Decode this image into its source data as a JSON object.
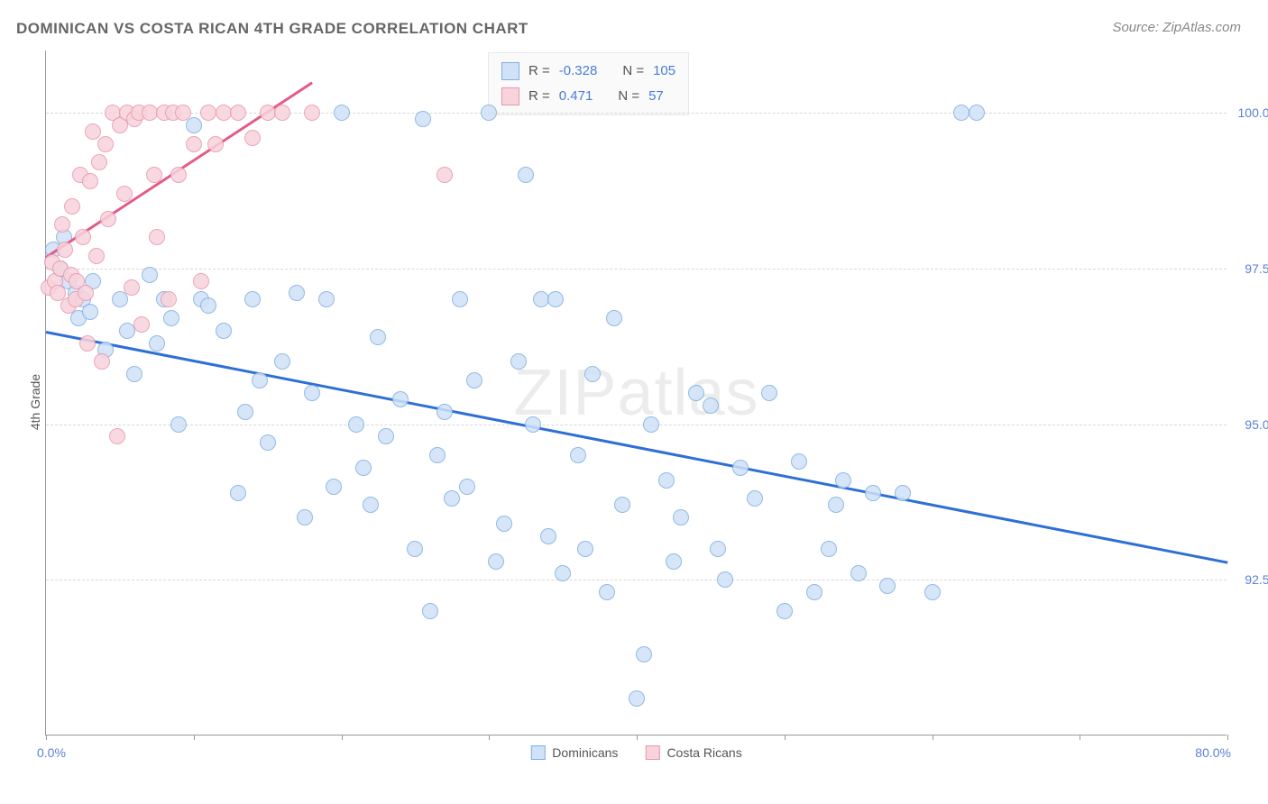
{
  "title": "DOMINICAN VS COSTA RICAN 4TH GRADE CORRELATION CHART",
  "source": "Source: ZipAtlas.com",
  "watermark_a": "ZIP",
  "watermark_b": "atlas",
  "chart": {
    "type": "scatter",
    "y_axis_title": "4th Grade",
    "background_color": "#ffffff",
    "grid_color": "#d8d8d8",
    "axis_color": "#999999",
    "xlim": [
      0,
      80
    ],
    "ylim": [
      90,
      101
    ],
    "x_tick_positions": [
      0,
      10,
      20,
      30,
      40,
      50,
      60,
      70,
      80
    ],
    "x_labels": {
      "min": "0.0%",
      "max": "80.0%"
    },
    "y_ticks": [
      {
        "v": 92.5,
        "label": "92.5%"
      },
      {
        "v": 95.0,
        "label": "95.0%"
      },
      {
        "v": 97.5,
        "label": "97.5%"
      },
      {
        "v": 100.0,
        "label": "100.0%"
      }
    ],
    "marker_radius": 9,
    "series": [
      {
        "name": "Dominicans",
        "fill": "#cfe2f7",
        "stroke": "#7eaee0",
        "trend_color": "#2e6fd6",
        "trend": {
          "x1": 0,
          "y1": 96.5,
          "x2": 80,
          "y2": 92.8
        },
        "r": "-0.328",
        "n": "105",
        "points": [
          [
            0.5,
            97.8
          ],
          [
            1.0,
            97.5
          ],
          [
            1.2,
            98.0
          ],
          [
            1.5,
            97.3
          ],
          [
            2.0,
            97.1
          ],
          [
            2.2,
            96.7
          ],
          [
            2.5,
            97.0
          ],
          [
            3.0,
            96.8
          ],
          [
            3.2,
            97.3
          ],
          [
            4.0,
            96.2
          ],
          [
            5.0,
            97.0
          ],
          [
            5.5,
            96.5
          ],
          [
            6.0,
            95.8
          ],
          [
            7.0,
            97.4
          ],
          [
            7.5,
            96.3
          ],
          [
            8.0,
            97.0
          ],
          [
            8.5,
            96.7
          ],
          [
            9.0,
            95.0
          ],
          [
            10.0,
            99.8
          ],
          [
            10.5,
            97.0
          ],
          [
            11.0,
            96.9
          ],
          [
            12.0,
            96.5
          ],
          [
            13.0,
            93.9
          ],
          [
            13.5,
            95.2
          ],
          [
            14.0,
            97.0
          ],
          [
            14.5,
            95.7
          ],
          [
            15.0,
            94.7
          ],
          [
            16.0,
            96.0
          ],
          [
            17.0,
            97.1
          ],
          [
            17.5,
            93.5
          ],
          [
            18.0,
            95.5
          ],
          [
            19.0,
            97.0
          ],
          [
            19.5,
            94.0
          ],
          [
            20.0,
            100.0
          ],
          [
            21.0,
            95.0
          ],
          [
            21.5,
            94.3
          ],
          [
            22.0,
            93.7
          ],
          [
            22.5,
            96.4
          ],
          [
            23.0,
            94.8
          ],
          [
            24.0,
            95.4
          ],
          [
            25.0,
            93.0
          ],
          [
            25.5,
            99.9
          ],
          [
            26.0,
            92.0
          ],
          [
            26.5,
            94.5
          ],
          [
            27.0,
            95.2
          ],
          [
            27.5,
            93.8
          ],
          [
            28.0,
            97.0
          ],
          [
            28.5,
            94.0
          ],
          [
            29.0,
            95.7
          ],
          [
            30.0,
            100.0
          ],
          [
            30.5,
            92.8
          ],
          [
            31.0,
            93.4
          ],
          [
            32.0,
            96.0
          ],
          [
            32.5,
            99.0
          ],
          [
            33.0,
            95.0
          ],
          [
            33.5,
            97.0
          ],
          [
            34.0,
            93.2
          ],
          [
            34.5,
            97.0
          ],
          [
            35.0,
            92.6
          ],
          [
            36.0,
            94.5
          ],
          [
            36.5,
            93.0
          ],
          [
            37.0,
            95.8
          ],
          [
            38.0,
            92.3
          ],
          [
            38.5,
            96.7
          ],
          [
            39.0,
            93.7
          ],
          [
            40.0,
            90.6
          ],
          [
            40.5,
            91.3
          ],
          [
            41.0,
            95.0
          ],
          [
            42.0,
            94.1
          ],
          [
            42.5,
            92.8
          ],
          [
            43.0,
            93.5
          ],
          [
            44.0,
            95.5
          ],
          [
            45.0,
            95.3
          ],
          [
            45.5,
            93.0
          ],
          [
            46.0,
            92.5
          ],
          [
            47.0,
            94.3
          ],
          [
            48.0,
            93.8
          ],
          [
            49.0,
            95.5
          ],
          [
            50.0,
            92.0
          ],
          [
            51.0,
            94.4
          ],
          [
            52.0,
            92.3
          ],
          [
            53.0,
            93.0
          ],
          [
            53.5,
            93.7
          ],
          [
            54.0,
            94.1
          ],
          [
            55.0,
            92.6
          ],
          [
            56.0,
            93.9
          ],
          [
            57.0,
            92.4
          ],
          [
            58.0,
            93.9
          ],
          [
            60.0,
            92.3
          ],
          [
            62.0,
            100.0
          ],
          [
            63.0,
            100.0
          ]
        ]
      },
      {
        "name": "Costa Ricans",
        "fill": "#f9d3dc",
        "stroke": "#e796ab",
        "trend_color": "#e45a87",
        "trend": {
          "x1": 0,
          "y1": 97.7,
          "x2": 18,
          "y2": 100.5
        },
        "r": "0.471",
        "n": "57",
        "points": [
          [
            0.2,
            97.2
          ],
          [
            0.4,
            97.6
          ],
          [
            0.6,
            97.3
          ],
          [
            0.8,
            97.1
          ],
          [
            1.0,
            97.5
          ],
          [
            1.1,
            98.2
          ],
          [
            1.3,
            97.8
          ],
          [
            1.5,
            96.9
          ],
          [
            1.7,
            97.4
          ],
          [
            1.8,
            98.5
          ],
          [
            2.0,
            97.0
          ],
          [
            2.1,
            97.3
          ],
          [
            2.3,
            99.0
          ],
          [
            2.5,
            98.0
          ],
          [
            2.7,
            97.1
          ],
          [
            2.8,
            96.3
          ],
          [
            3.0,
            98.9
          ],
          [
            3.2,
            99.7
          ],
          [
            3.4,
            97.7
          ],
          [
            3.6,
            99.2
          ],
          [
            3.8,
            96.0
          ],
          [
            4.0,
            99.5
          ],
          [
            4.2,
            98.3
          ],
          [
            4.5,
            100.0
          ],
          [
            4.8,
            94.8
          ],
          [
            5.0,
            99.8
          ],
          [
            5.3,
            98.7
          ],
          [
            5.5,
            100.0
          ],
          [
            5.8,
            97.2
          ],
          [
            6.0,
            99.9
          ],
          [
            6.3,
            100.0
          ],
          [
            6.5,
            96.6
          ],
          [
            7.0,
            100.0
          ],
          [
            7.3,
            99.0
          ],
          [
            7.5,
            98.0
          ],
          [
            8.0,
            100.0
          ],
          [
            8.3,
            97.0
          ],
          [
            8.6,
            100.0
          ],
          [
            9.0,
            99.0
          ],
          [
            9.3,
            100.0
          ],
          [
            10.0,
            99.5
          ],
          [
            10.5,
            97.3
          ],
          [
            11.0,
            100.0
          ],
          [
            11.5,
            99.5
          ],
          [
            12.0,
            100.0
          ],
          [
            13.0,
            100.0
          ],
          [
            14.0,
            99.6
          ],
          [
            15.0,
            100.0
          ],
          [
            16.0,
            100.0
          ],
          [
            18.0,
            100.0
          ],
          [
            27.0,
            99.0
          ]
        ]
      }
    ]
  },
  "legend_top": {
    "r_label": "R =",
    "n_label": "N ="
  },
  "legend_bottom_labels": [
    "Dominicans",
    "Costa Ricans"
  ]
}
